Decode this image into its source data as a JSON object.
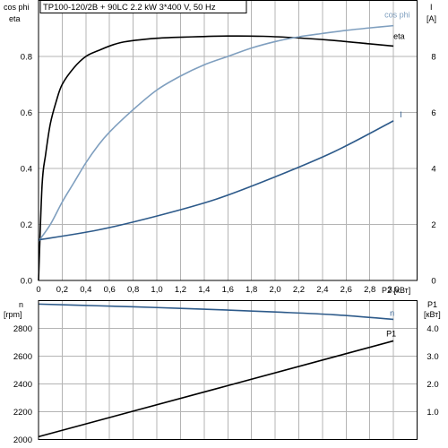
{
  "title": "TP100-120/2B + 90LC   2.2 kW   3*400 V, 50 Hz",
  "colors": {
    "eta": "#000000",
    "cos_phi": "#7f9fbf",
    "I": "#2d5a8a",
    "n": "#2d5a8a",
    "P1": "#000000",
    "grid": "#b4b4b4"
  },
  "chart_data": [
    {
      "type": "line",
      "panel": "top",
      "title": "TP100-120/2B + 90LC   2.2 kW   3*400 V, 50 Hz",
      "xlabel": "P2 [кВт]",
      "ylabel_left": "cos phi\neta",
      "ylabel_right": "I\n[A]",
      "xlim": [
        0,
        3.2
      ],
      "ylim_left": [
        0,
        1.0
      ],
      "ylim_right": [
        0,
        10
      ],
      "xticks": [
        "0",
        "0,2",
        "0,4",
        "0,6",
        "0,8",
        "1,0",
        "1,2",
        "1,4",
        "1,6",
        "1,8",
        "2,0",
        "2,2",
        "2,4",
        "2,6",
        "2,8",
        "3,0"
      ],
      "yticks_left": [
        "0.0",
        "0.2",
        "0.4",
        "0.6",
        "0.8"
      ],
      "yticks_right": [
        "0",
        "2",
        "4",
        "6",
        "8"
      ],
      "grid": true,
      "series": [
        {
          "name": "eta",
          "axis": "left",
          "x": [
            0,
            0.03,
            0.06,
            0.1,
            0.15,
            0.2,
            0.3,
            0.4,
            0.5,
            0.7,
            1.0,
            1.3,
            1.6,
            1.9,
            2.2,
            2.5,
            2.8,
            3.0
          ],
          "y": [
            0,
            0.34,
            0.45,
            0.56,
            0.64,
            0.7,
            0.76,
            0.8,
            0.82,
            0.85,
            0.865,
            0.87,
            0.873,
            0.872,
            0.866,
            0.857,
            0.845,
            0.837
          ]
        },
        {
          "name": "cos phi",
          "axis": "left",
          "x": [
            0,
            0.1,
            0.2,
            0.3,
            0.4,
            0.5,
            0.6,
            0.8,
            1.0,
            1.2,
            1.4,
            1.6,
            1.8,
            2.0,
            2.2,
            2.4,
            2.6,
            2.8,
            3.0
          ],
          "y": [
            0.14,
            0.2,
            0.28,
            0.35,
            0.42,
            0.48,
            0.53,
            0.61,
            0.68,
            0.73,
            0.77,
            0.8,
            0.83,
            0.853,
            0.87,
            0.882,
            0.893,
            0.902,
            0.91
          ]
        },
        {
          "name": "I",
          "axis": "right",
          "x": [
            0,
            0.5,
            1.0,
            1.5,
            2.0,
            2.5,
            3.0
          ],
          "y": [
            1.45,
            1.8,
            2.3,
            2.9,
            3.7,
            4.6,
            5.7
          ]
        }
      ]
    },
    {
      "type": "line",
      "panel": "bottom",
      "ylabel_left": "n\n[rpm]",
      "ylabel_right": "P1\n[кВт]",
      "xlim": [
        0,
        3.2
      ],
      "ylim_left": [
        2000,
        3000
      ],
      "ylim_right": [
        0,
        5.0
      ],
      "yticks_left": [
        "2000",
        "2200",
        "2400",
        "2600",
        "2800"
      ],
      "yticks_right": [
        "1.0",
        "2.0",
        "3.0",
        "4.0"
      ],
      "grid": true,
      "series": [
        {
          "name": "n",
          "axis": "left",
          "x": [
            0,
            0.5,
            1.0,
            1.5,
            2.0,
            2.5,
            3.0
          ],
          "y": [
            2975,
            2963,
            2950,
            2935,
            2918,
            2898,
            2865
          ]
        },
        {
          "name": "P1",
          "axis": "right",
          "x": [
            0,
            3.0
          ],
          "y": [
            0.1,
            3.55
          ]
        }
      ]
    }
  ]
}
